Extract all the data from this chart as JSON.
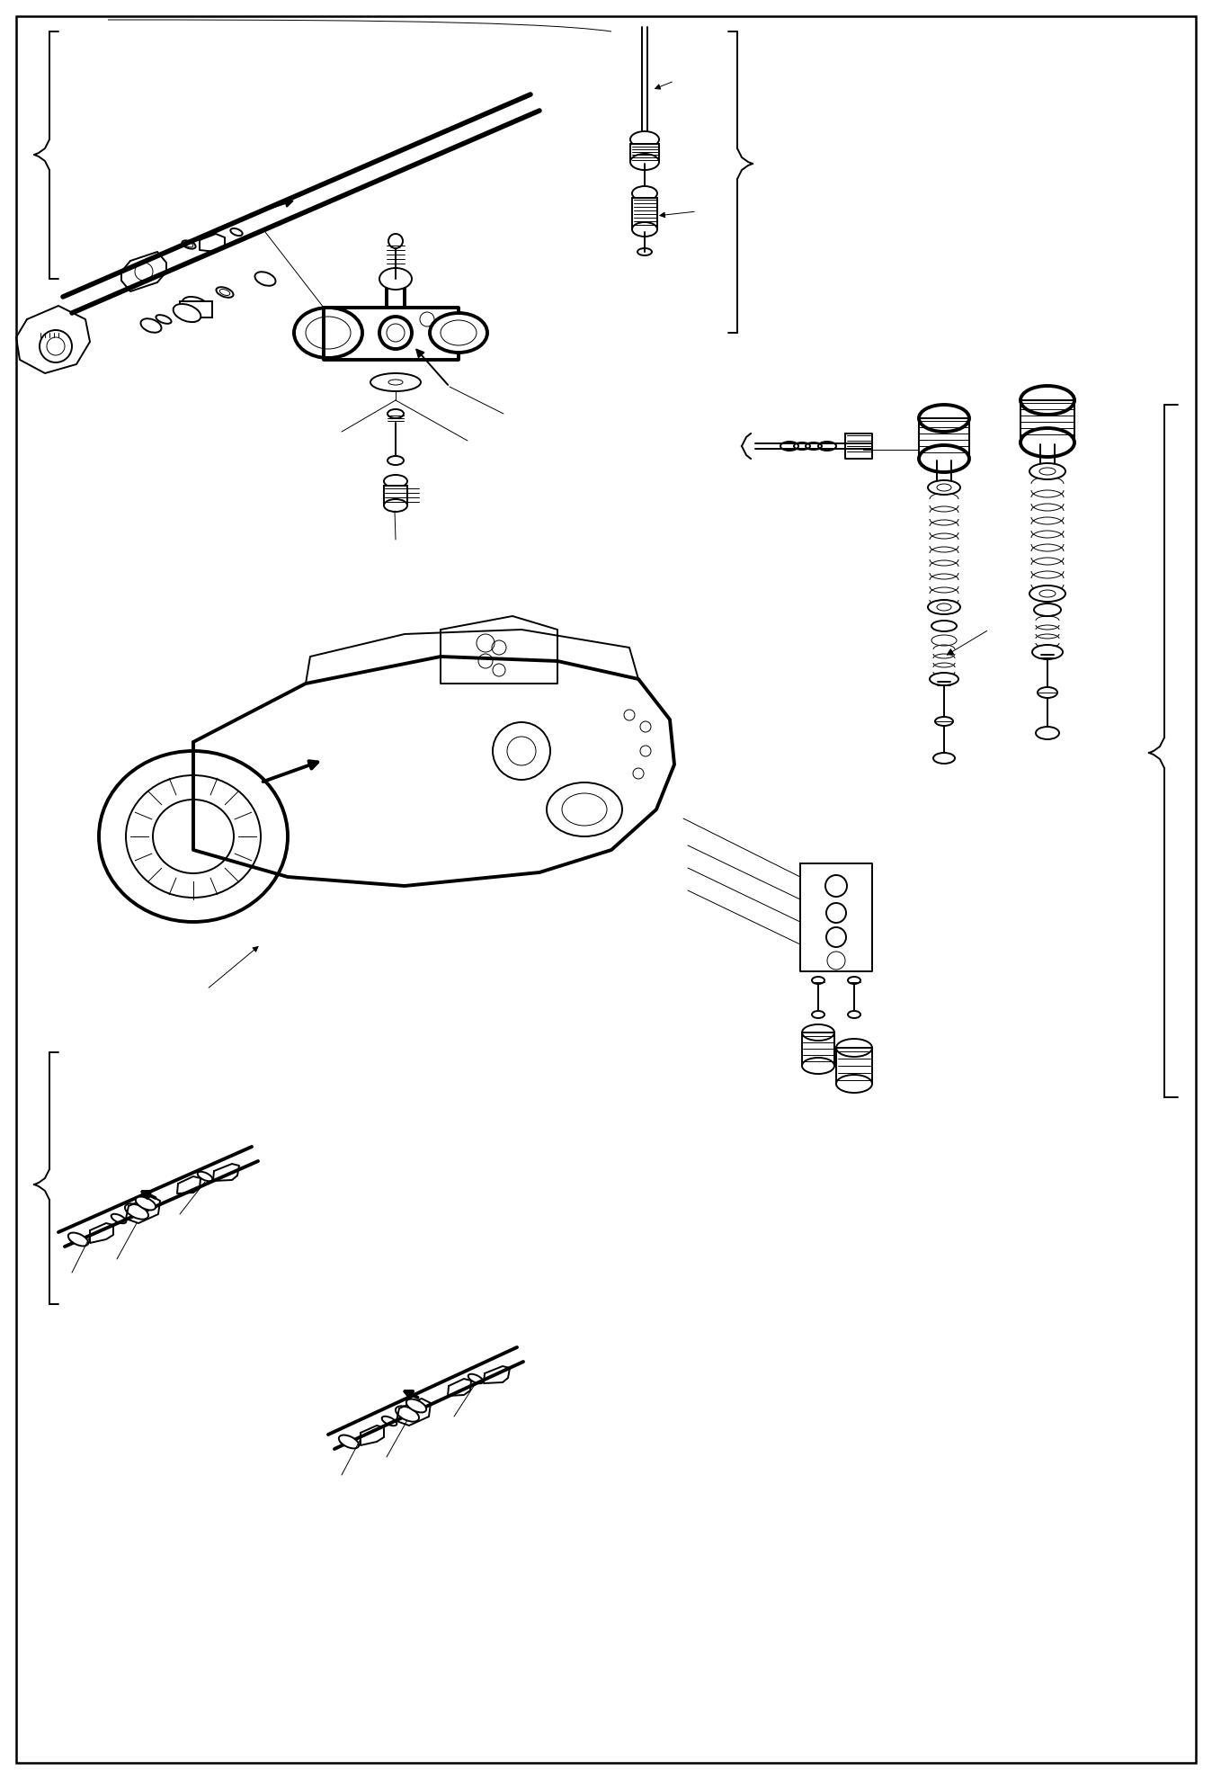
{
  "background_color": "#ffffff",
  "line_color": "#000000",
  "fig_width": 13.48,
  "fig_height": 19.78,
  "dpi": 100,
  "lw_thin": 0.7,
  "lw_med": 1.4,
  "lw_thick": 2.8,
  "lw_xthick": 4.0
}
